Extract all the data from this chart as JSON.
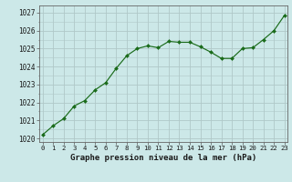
{
  "x": [
    0,
    1,
    2,
    3,
    4,
    5,
    6,
    7,
    8,
    9,
    10,
    11,
    12,
    13,
    14,
    15,
    16,
    17,
    18,
    19,
    20,
    21,
    22,
    23
  ],
  "y": [
    1020.2,
    1020.7,
    1021.1,
    1021.8,
    1022.1,
    1022.7,
    1023.1,
    1023.9,
    1024.6,
    1025.0,
    1025.15,
    1025.05,
    1025.4,
    1025.35,
    1025.35,
    1025.1,
    1024.8,
    1024.45,
    1024.45,
    1025.0,
    1025.05,
    1025.5,
    1026.0,
    1026.85
  ],
  "line_color": "#1a6b1a",
  "marker_color": "#1a6b1a",
  "bg_color": "#cce8e8",
  "grid_color": "#b0c8c8",
  "xlabel": "Graphe pression niveau de la mer (hPa)",
  "xlabel_fontsize": 6.5,
  "tick_fontsize": 5.5,
  "ylim": [
    1019.8,
    1027.4
  ],
  "xlim": [
    -0.3,
    23.3
  ]
}
